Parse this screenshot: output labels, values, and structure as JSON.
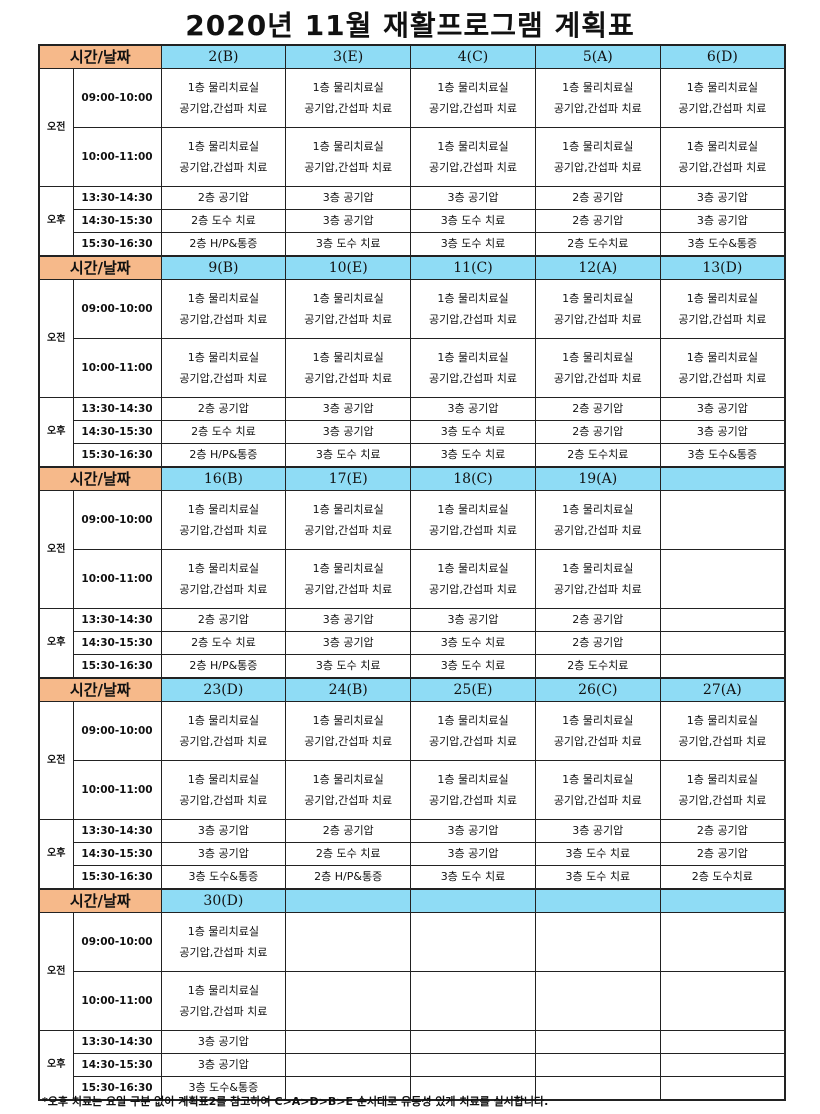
{
  "title": "2020년 11월 재활프로그램 계획표",
  "corner_label": "시간/날짜",
  "periods": {
    "am": "오전",
    "pm": "오후"
  },
  "times": [
    "09:00-10:00",
    "10:00-11:00",
    "13:30-14:30",
    "14:30-15:30",
    "15:30-16:30"
  ],
  "am_text": [
    "1층 물리치료실",
    "공기압,간섭파 치료"
  ],
  "weeks": [
    {
      "days": [
        {
          "label": "2(B)",
          "pm": [
            "2층 공기압",
            "2층 도수 치료",
            "2층 H/P&통증"
          ]
        },
        {
          "label": "3(E)",
          "pm": [
            "3층 공기압",
            "3층 공기압",
            "3층 도수 치료"
          ]
        },
        {
          "label": "4(C)",
          "pm": [
            "3층 공기압",
            "3층 도수 치료",
            "3층 도수 치료"
          ]
        },
        {
          "label": "5(A)",
          "pm": [
            "2층 공기압",
            "2층 공기압",
            "2층 도수치료"
          ]
        },
        {
          "label": "6(D)",
          "pm": [
            "3층 공기압",
            "3층 공기압",
            "3층 도수&통증"
          ]
        }
      ]
    },
    {
      "days": [
        {
          "label": "9(B)",
          "pm": [
            "2층 공기압",
            "2층 도수 치료",
            "2층 H/P&통증"
          ]
        },
        {
          "label": "10(E)",
          "pm": [
            "3층 공기압",
            "3층 공기압",
            "3층 도수 치료"
          ]
        },
        {
          "label": "11(C)",
          "pm": [
            "3층 공기압",
            "3층 도수 치료",
            "3층 도수 치료"
          ]
        },
        {
          "label": "12(A)",
          "pm": [
            "2층 공기압",
            "2층 공기압",
            "2층 도수치료"
          ]
        },
        {
          "label": "13(D)",
          "pm": [
            "3층 공기압",
            "3층 공기압",
            "3층 도수&통증"
          ]
        }
      ]
    },
    {
      "days": [
        {
          "label": "16(B)",
          "pm": [
            "2층 공기압",
            "2층 도수 치료",
            "2층 H/P&통증"
          ]
        },
        {
          "label": "17(E)",
          "pm": [
            "3층 공기압",
            "3층 공기압",
            "3층 도수 치료"
          ]
        },
        {
          "label": "18(C)",
          "pm": [
            "3층 공기압",
            "3층 도수 치료",
            "3층 도수 치료"
          ]
        },
        {
          "label": "19(A)",
          "pm": [
            "2층 공기압",
            "2층 공기압",
            "2층 도수치료"
          ]
        },
        null
      ]
    },
    {
      "days": [
        {
          "label": "23(D)",
          "pm": [
            "3층 공기압",
            "3층 공기압",
            "3층 도수&통증"
          ]
        },
        {
          "label": "24(B)",
          "pm": [
            "2층 공기압",
            "2층 도수 치료",
            "2층 H/P&통증"
          ]
        },
        {
          "label": "25(E)",
          "pm": [
            "3층 공기압",
            "3층 공기압",
            "3층 도수 치료"
          ]
        },
        {
          "label": "26(C)",
          "pm": [
            "3층 공기압",
            "3층 도수 치료",
            "3층 도수 치료"
          ]
        },
        {
          "label": "27(A)",
          "pm": [
            "2층 공기압",
            "2층 공기압",
            "2층 도수치료"
          ]
        }
      ]
    },
    {
      "days": [
        {
          "label": "30(D)",
          "pm": [
            "3층 공기압",
            "3층 공기압",
            "3층 도수&통증"
          ]
        },
        null,
        null,
        null,
        null
      ]
    }
  ],
  "footer": "*오후 치료는 요일 구분 없이 계획표2를 참고하여 C>A>D>B>E 순서대로 유동성 있게 치료를 실시합니다."
}
